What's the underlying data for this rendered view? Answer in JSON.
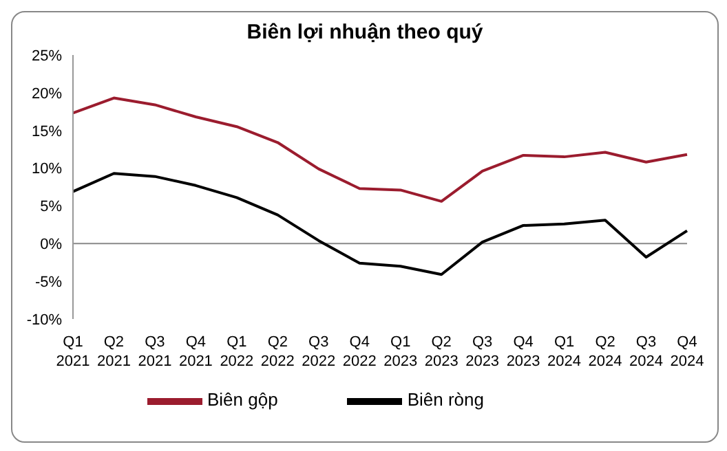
{
  "chart_data": {
    "type": "line",
    "title": "Biên lợi nhuận theo quý",
    "categories": [
      "Q1 2021",
      "Q2 2021",
      "Q3 2021",
      "Q4 2021",
      "Q1 2022",
      "Q2 2022",
      "Q3 2022",
      "Q4 2022",
      "Q1 2023",
      "Q2 2023",
      "Q3 2023",
      "Q4 2023",
      "Q1 2024",
      "Q2 2024",
      "Q3 2024",
      "Q4 2024"
    ],
    "series": [
      {
        "name": "Biên gộp",
        "color": "#9b1c2e",
        "values": [
          17.3,
          19.3,
          18.4,
          16.8,
          15.5,
          13.4,
          9.9,
          7.3,
          7.1,
          5.6,
          9.6,
          11.7,
          11.5,
          12.1,
          10.8,
          11.8
        ]
      },
      {
        "name": "Biên ròng",
        "color": "#000000",
        "values": [
          6.9,
          9.3,
          8.9,
          7.7,
          6.1,
          3.8,
          0.4,
          -2.6,
          -3.0,
          -4.1,
          0.2,
          2.4,
          2.6,
          3.1,
          -1.8,
          1.7
        ]
      }
    ],
    "ylim": [
      -10,
      25
    ],
    "yticks": [
      {
        "value": -10,
        "label": "-10%"
      },
      {
        "value": -5,
        "label": "-5%"
      },
      {
        "value": 0,
        "label": "0%"
      },
      {
        "value": 5,
        "label": "5%"
      },
      {
        "value": 10,
        "label": "10%"
      },
      {
        "value": 15,
        "label": "15%"
      },
      {
        "value": 20,
        "label": "20%"
      },
      {
        "value": 25,
        "label": "25%"
      }
    ],
    "ref_lines": [
      {
        "axis": "y",
        "value": 0,
        "color": "#888888"
      }
    ],
    "grid": false,
    "legend": "bottom",
    "marker": "none",
    "line_style": "solid"
  }
}
